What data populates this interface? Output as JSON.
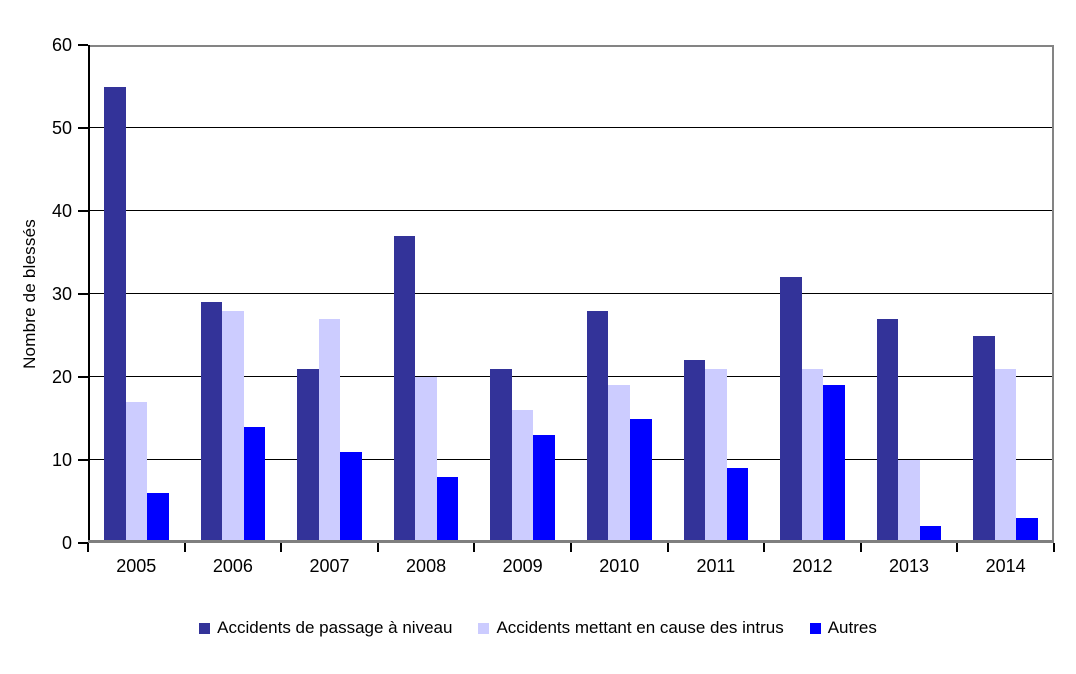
{
  "chart_data": {
    "type": "bar",
    "title": "",
    "xlabel": "",
    "ylabel": "Nombre de blessés",
    "categories": [
      "2005",
      "2006",
      "2007",
      "2008",
      "2009",
      "2010",
      "2011",
      "2012",
      "2013",
      "2014"
    ],
    "series": [
      {
        "name": "Accidents de passage à niveau",
        "color": "#333399",
        "values": [
          55,
          29,
          21,
          37,
          21,
          28,
          22,
          32,
          27,
          25
        ]
      },
      {
        "name": "Accidents mettant en cause des intrus",
        "color": "#CCCCFF",
        "values": [
          17,
          28,
          27,
          20,
          16,
          19,
          21,
          21,
          10,
          21
        ]
      },
      {
        "name": "Autres",
        "color": "#0000FF",
        "values": [
          6,
          14,
          11,
          8,
          13,
          15,
          9,
          19,
          2,
          3
        ]
      }
    ],
    "ylim": [
      0,
      60
    ],
    "y_ticks": [
      0,
      10,
      20,
      30,
      40,
      50,
      60
    ],
    "grid": true,
    "legend_position": "bottom"
  },
  "colors": {
    "background": "#FFFFFF",
    "gridline": "#000000",
    "plot_border": "#848484",
    "axis_line_y": "#000000",
    "axis_line_x": "#7F7F7F",
    "tick": "#000000",
    "text": "#000000"
  }
}
